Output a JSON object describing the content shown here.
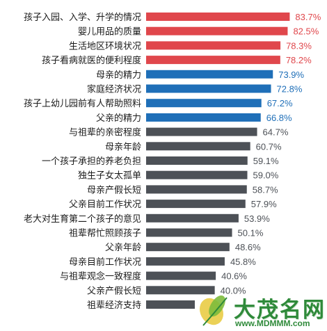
{
  "chart_data": {
    "type": "bar",
    "orientation": "horizontal",
    "categories": [
      "孩子入园、入学、升学的情况",
      "婴儿用品的质量",
      "生活地区环境状况",
      "孩子看病就医的便利程度",
      "母亲的精力",
      "家庭经济状况",
      "孩子上幼儿园前有人帮助照料",
      "父亲的精力",
      "与祖辈的亲密程度",
      "母亲年龄",
      "一个孩子承担的养老负担",
      "独生子女太孤单",
      "母亲产假长短",
      "父亲目前工作状况",
      "老大对生育第二个孩子的意见",
      "祖辈帮忙照顾孩子",
      "父亲年龄",
      "母亲目前工作状况",
      "与祖辈观念一致程度",
      "父亲产假长短",
      "祖辈经济支持"
    ],
    "values": [
      83.7,
      82.5,
      78.3,
      78.2,
      73.9,
      72.8,
      67.2,
      66.8,
      64.7,
      60.7,
      59.1,
      59.0,
      58.7,
      57.9,
      53.9,
      50.1,
      48.6,
      45.8,
      40.6,
      40.0,
      null
    ],
    "value_labels": [
      "83.7%",
      "82.5%",
      "78.3%",
      "78.2%",
      "73.9%",
      "72.8%",
      "67.2%",
      "66.8%",
      "64.7%",
      "60.7%",
      "59.1%",
      "59.0%",
      "58.7%",
      "57.9%",
      "53.9%",
      "50.1%",
      "48.6%",
      "45.8%",
      "40.6%",
      "40.0%",
      ""
    ],
    "bar_color_groups": [
      "red",
      "red",
      "red",
      "red",
      "blue",
      "blue",
      "blue",
      "blue",
      "gray",
      "gray",
      "gray",
      "gray",
      "gray",
      "gray",
      "gray",
      "gray",
      "gray",
      "gray",
      "gray",
      "gray",
      "gray"
    ],
    "colors": {
      "red": "#e0474c",
      "blue": "#1f6fb8",
      "gray": "#4d5157"
    },
    "xlim": [
      0,
      100
    ],
    "grid": false,
    "legend": "none"
  },
  "watermark": {
    "name": "大茂名网",
    "url": "www.MDMMM.com"
  }
}
